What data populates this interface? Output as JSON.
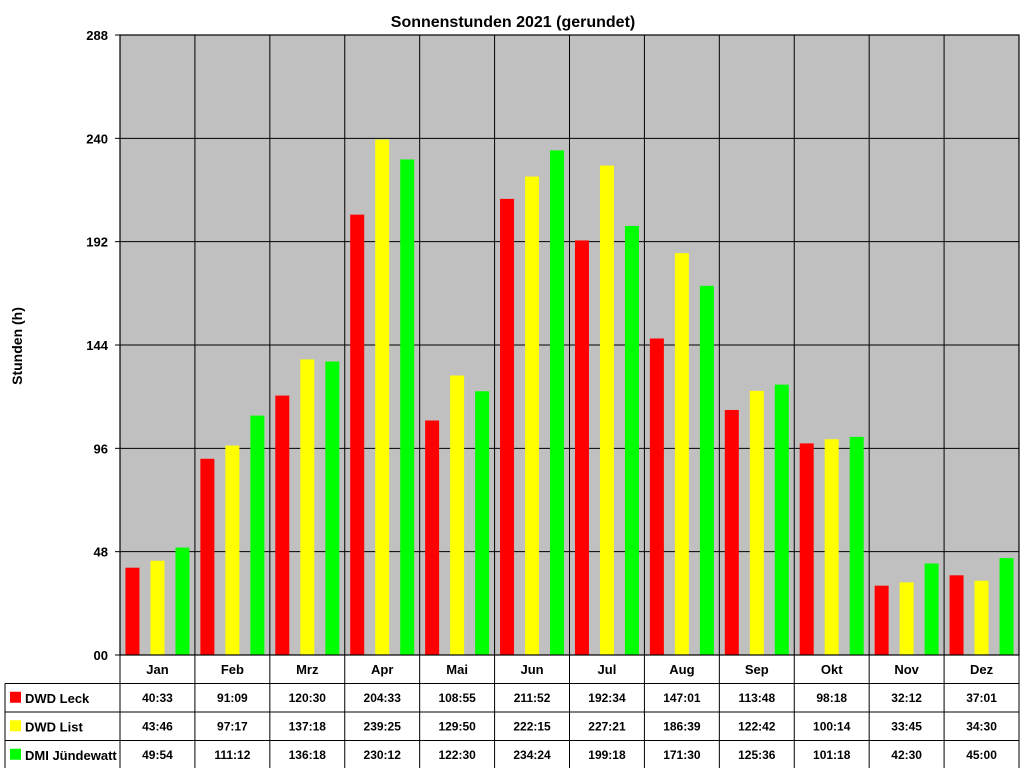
{
  "chart_data": {
    "type": "bar",
    "title": "Sonnenstunden 2021 (gerundet)",
    "xlabel": "",
    "ylabel": "Stunden (h)",
    "ylim": [
      0,
      288
    ],
    "yticks": [
      "00",
      "48",
      "96",
      "144",
      "192",
      "240",
      "288"
    ],
    "grid": true,
    "legend_position": "table-bottom",
    "categories": [
      "Jan",
      "Feb",
      "Mrz",
      "Apr",
      "Mai",
      "Jun",
      "Jul",
      "Aug",
      "Sep",
      "Okt",
      "Nov",
      "Dez"
    ],
    "series": [
      {
        "name": "DWD Leck",
        "color": "#ff0000",
        "values": [
          40.55,
          91.15,
          120.5,
          204.55,
          108.92,
          211.87,
          192.57,
          147.02,
          113.8,
          98.3,
          32.2,
          37.02
        ],
        "labels": [
          "40:33",
          "91:09",
          "120:30",
          "204:33",
          "108:55",
          "211:52",
          "192:34",
          "147:01",
          "113:48",
          "98:18",
          "32:12",
          "37:01"
        ]
      },
      {
        "name": "DWD List",
        "color": "#ffff00",
        "values": [
          43.77,
          97.28,
          137.3,
          239.42,
          129.83,
          222.25,
          227.35,
          186.65,
          122.7,
          100.23,
          33.75,
          34.5
        ],
        "labels": [
          "43:46",
          "97:17",
          "137:18",
          "239:25",
          "129:50",
          "222:15",
          "227:21",
          "186:39",
          "122:42",
          "100:14",
          "33:45",
          "34:30"
        ]
      },
      {
        "name": "DMI Jündewatt",
        "color": "#00ff00",
        "values": [
          49.9,
          111.2,
          136.3,
          230.2,
          122.5,
          234.4,
          199.3,
          171.5,
          125.6,
          101.3,
          42.5,
          45.0
        ],
        "labels": [
          "49:54",
          "111:12",
          "136:18",
          "230:12",
          "122:30",
          "234:24",
          "199:18",
          "171:30",
          "125:36",
          "101:18",
          "42:30",
          "45:00"
        ]
      }
    ],
    "plot_background": "#c0c0c0"
  }
}
